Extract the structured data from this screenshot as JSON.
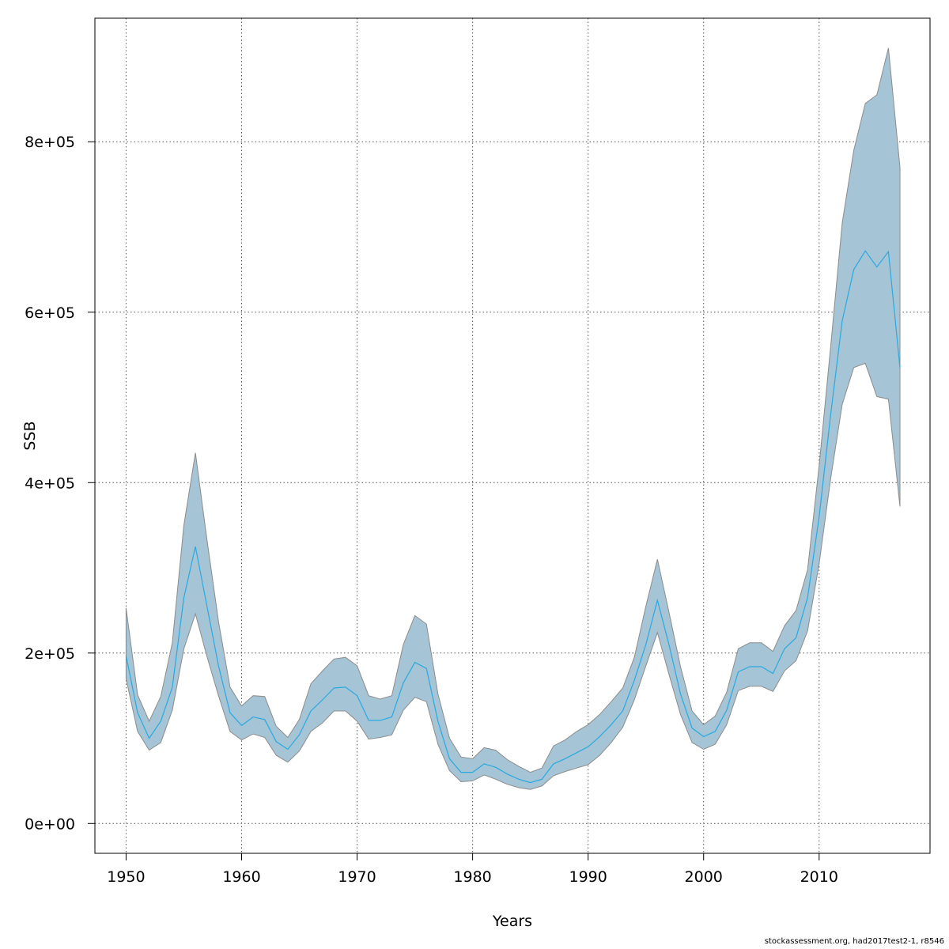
{
  "chart_data": {
    "type": "area",
    "xlabel": "Years",
    "ylabel": "SSB",
    "xlim": [
      1947.3,
      2019.6
    ],
    "ylim": [
      -35000,
      945000
    ],
    "x_ticks": [
      1950,
      1960,
      1970,
      1980,
      1990,
      2000,
      2010
    ],
    "x_tick_labels": [
      "1950",
      "1960",
      "1970",
      "1980",
      "1990",
      "2000",
      "2010"
    ],
    "y_ticks": [
      0,
      200000,
      400000,
      600000,
      800000
    ],
    "y_tick_labels": [
      "0e+00",
      "2e+05",
      "4e+05",
      "6e+05",
      "8e+05"
    ],
    "grid": true,
    "band_color": "#a5c4d5",
    "band_edge_color": "#8c8c8c",
    "line_color": "#29a9e1",
    "series": [
      {
        "years": [
          1950,
          1951,
          1952,
          1953,
          1954,
          1955,
          1956,
          1957,
          1958,
          1959,
          1960,
          1961,
          1962,
          1963,
          1964,
          1965,
          1966,
          1967,
          1968,
          1969,
          1970,
          1971,
          1972,
          1973,
          1974,
          1975,
          1976,
          1977,
          1978,
          1979,
          1980,
          1981,
          1982,
          1983,
          1984,
          1985,
          1986,
          1987,
          1988,
          1989,
          1990,
          1991,
          1992,
          1993,
          1994,
          1995,
          1996,
          1997,
          1998,
          1999,
          2000,
          2001,
          2002,
          2003,
          2004,
          2005,
          2006,
          2007,
          2008,
          2009,
          2010,
          2011,
          2012,
          2013,
          2014,
          2015,
          2016,
          2017
        ],
        "estimate": [
          197000,
          130000,
          100000,
          120000,
          160000,
          265000,
          325000,
          255000,
          185000,
          130000,
          115000,
          125000,
          122000,
          96000,
          87000,
          104000,
          132000,
          145000,
          159000,
          160000,
          150000,
          121000,
          121000,
          125000,
          165000,
          189000,
          182000,
          120000,
          76000,
          60000,
          60000,
          70000,
          66000,
          58000,
          52000,
          48000,
          52000,
          70000,
          76000,
          83000,
          90000,
          102000,
          116000,
          132000,
          168000,
          210000,
          262000,
          210000,
          152000,
          112000,
          102000,
          108000,
          133000,
          178000,
          184000,
          184000,
          176000,
          205000,
          218000,
          265000,
          360000,
          480000,
          590000,
          650000,
          672000,
          653000,
          671000,
          535000
        ],
        "lower": [
          170000,
          108000,
          86000,
          95000,
          133000,
          205000,
          246000,
          196000,
          150000,
          108000,
          98000,
          105000,
          101000,
          80000,
          72000,
          85000,
          108000,
          118000,
          132000,
          132000,
          120000,
          99000,
          101000,
          104000,
          133000,
          148000,
          143000,
          93000,
          62000,
          49000,
          50000,
          57000,
          52000,
          46000,
          42000,
          40000,
          44000,
          56000,
          61000,
          65000,
          69000,
          80000,
          95000,
          113000,
          145000,
          185000,
          224000,
          175000,
          128000,
          95000,
          87000,
          93000,
          116000,
          156000,
          161000,
          161000,
          155000,
          179000,
          191000,
          226000,
          305000,
          405000,
          492000,
          535000,
          540000,
          501000,
          498000,
          372000
        ],
        "upper": [
          253000,
          151000,
          120000,
          149000,
          212000,
          350000,
          435000,
          333000,
          237000,
          160000,
          138000,
          150000,
          149000,
          114000,
          101000,
          122000,
          164000,
          179000,
          193000,
          195000,
          185000,
          150000,
          146000,
          150000,
          210000,
          244000,
          234000,
          152000,
          100000,
          78000,
          76000,
          89000,
          86000,
          75000,
          67000,
          60000,
          65000,
          91000,
          98000,
          108000,
          116000,
          128000,
          143000,
          159000,
          195000,
          255000,
          310000,
          248000,
          184000,
          132000,
          116000,
          126000,
          154000,
          205000,
          212000,
          212000,
          202000,
          232000,
          250000,
          298000,
          420000,
          560000,
          705000,
          790000,
          845000,
          855000,
          910000,
          770000
        ]
      }
    ]
  },
  "footer": {
    "text": "stockassessment.org, had2017test2-1, r8546"
  }
}
